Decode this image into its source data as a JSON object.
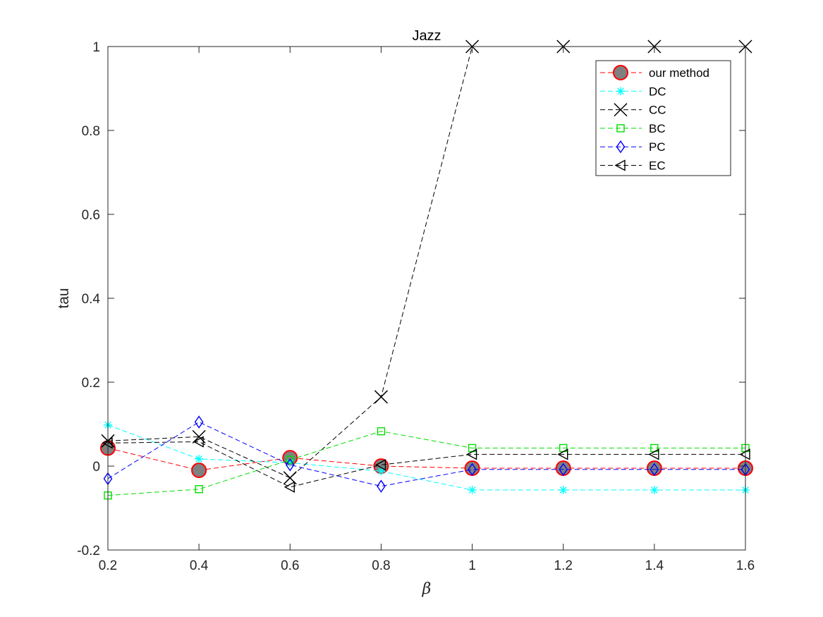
{
  "chart_data": {
    "type": "line",
    "title": "Jazz",
    "xlabel": "β",
    "ylabel": "tau",
    "xlim": [
      0.2,
      1.6
    ],
    "ylim": [
      -0.2,
      1
    ],
    "x_ticks": [
      0.2,
      0.4,
      0.6,
      0.8,
      1,
      1.2,
      1.4,
      1.6
    ],
    "x_tick_labels": [
      "0.2",
      "0.4",
      "0.6",
      "0.8",
      "1",
      "1.2",
      "1.4",
      "1.6"
    ],
    "y_ticks": [
      -0.2,
      0,
      0.2,
      0.4,
      0.6,
      0.8,
      1
    ],
    "y_tick_labels": [
      "-0.2",
      "0",
      "0.2",
      "0.4",
      "0.6",
      "0.8",
      "1"
    ],
    "grid": false,
    "legend_position": "top-right",
    "x": [
      0.2,
      0.4,
      0.6,
      0.8,
      1,
      1.2,
      1.4,
      1.6
    ],
    "series": [
      {
        "name": "our method",
        "color": "#ff0000",
        "marker": "circle",
        "values": [
          0.043,
          -0.01,
          0.02,
          0.0,
          -0.005,
          -0.005,
          -0.005,
          -0.005
        ]
      },
      {
        "name": "DC",
        "color": "#00ffff",
        "marker": "asterisk",
        "values": [
          0.098,
          0.017,
          0.008,
          -0.012,
          -0.057,
          -0.057,
          -0.057,
          -0.057
        ]
      },
      {
        "name": "CC",
        "color": "#000000",
        "marker": "x",
        "values": [
          0.06,
          0.07,
          -0.028,
          0.165,
          1.0,
          1.0,
          1.0,
          1.0
        ]
      },
      {
        "name": "BC",
        "color": "#00dd00",
        "marker": "square",
        "values": [
          -0.07,
          -0.055,
          0.015,
          0.083,
          0.043,
          0.043,
          0.043,
          0.043
        ]
      },
      {
        "name": "PC",
        "color": "#0000ff",
        "marker": "diamond",
        "values": [
          -0.03,
          0.105,
          0.003,
          -0.048,
          -0.008,
          -0.008,
          -0.008,
          -0.008
        ]
      },
      {
        "name": "EC",
        "color": "#000000",
        "marker": "triangle-left",
        "values": [
          0.055,
          0.058,
          -0.05,
          0.003,
          0.028,
          0.028,
          0.028,
          0.028
        ]
      }
    ]
  }
}
